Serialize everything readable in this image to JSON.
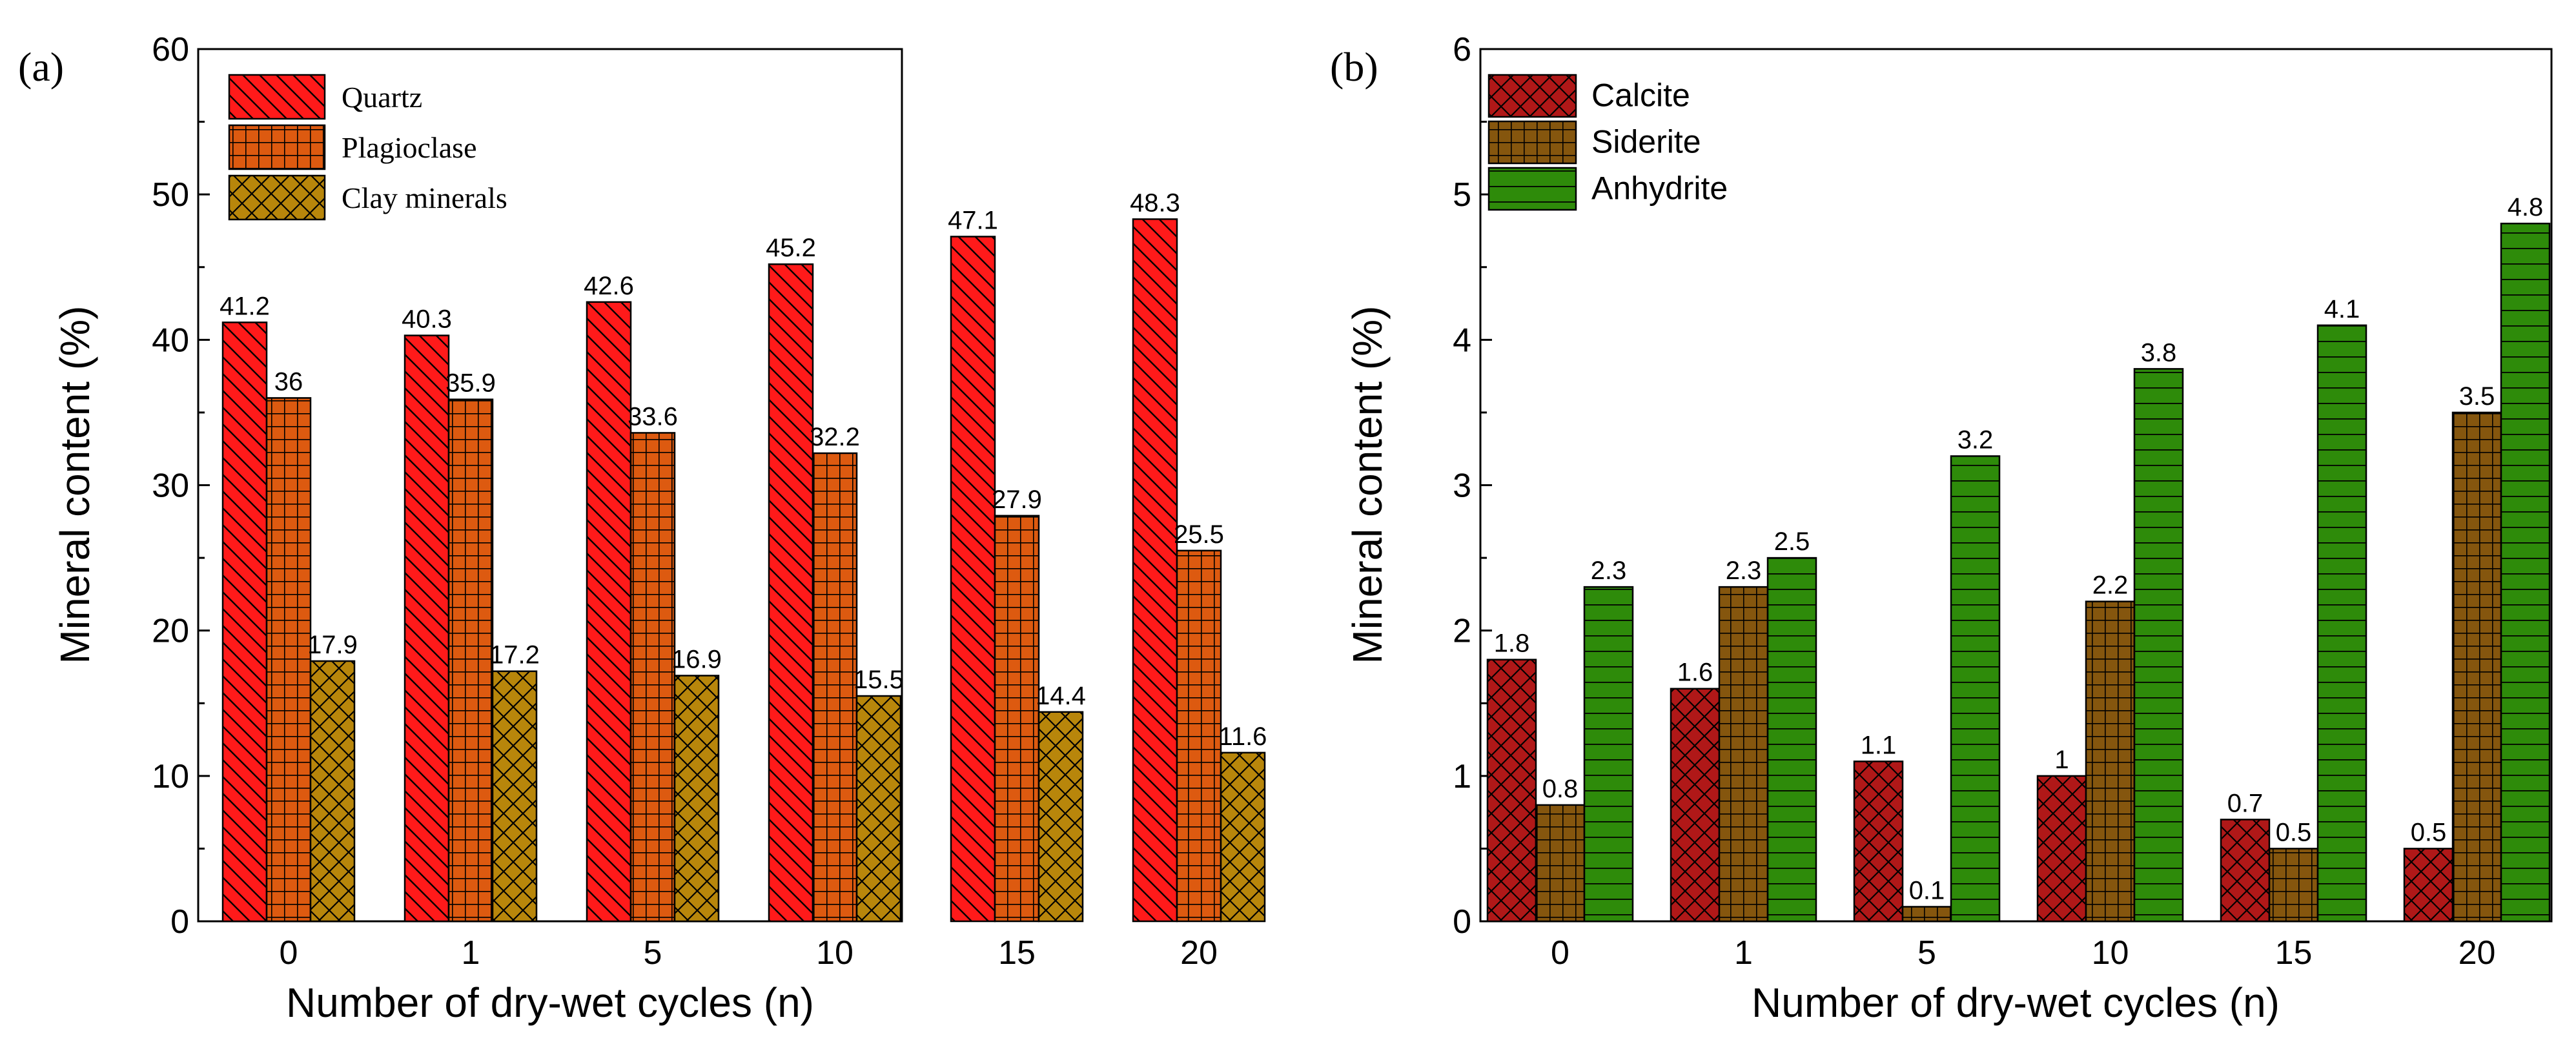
{
  "chart_data": [
    {
      "panel": "(a)",
      "type": "bar",
      "xlabel": "Number of dry-wet cycles (n)",
      "ylabel": "Mineral content (%)",
      "ylim": [
        0,
        60
      ],
      "yticks": [
        0,
        10,
        20,
        30,
        40,
        50,
        60
      ],
      "categories": [
        "0",
        "1",
        "5",
        "10",
        "15",
        "20"
      ],
      "series": [
        {
          "name": "Quartz",
          "color": "#ff1a1a",
          "pattern": "hatch-back",
          "values": [
            41.2,
            40.3,
            42.6,
            45.2,
            47.1,
            48.3
          ]
        },
        {
          "name": "Plagioclase",
          "color": "#dd5a10",
          "pattern": "grid",
          "values": [
            36,
            35.9,
            33.6,
            32.2,
            27.9,
            25.5
          ]
        },
        {
          "name": "Clay minerals",
          "color": "#b8860b",
          "pattern": "crosshatch",
          "values": [
            17.9,
            17.2,
            16.9,
            15.5,
            14.4,
            11.6
          ]
        }
      ],
      "legend_position": "top-left"
    },
    {
      "panel": "(b)",
      "type": "bar",
      "xlabel": "Number of dry-wet cycles (n)",
      "ylabel": "Mineral content (%)",
      "ylim": [
        0,
        6
      ],
      "yticks": [
        0,
        1,
        2,
        3,
        4,
        5,
        6
      ],
      "categories": [
        "0",
        "1",
        "5",
        "10",
        "15",
        "20"
      ],
      "series": [
        {
          "name": "Calcite",
          "color": "#b01818",
          "pattern": "crosshatch",
          "values": [
            1.8,
            1.6,
            1.1,
            1,
            0.7,
            0.5
          ]
        },
        {
          "name": "Siderite",
          "color": "#85560e",
          "pattern": "grid",
          "values": [
            0.8,
            2.3,
            0.1,
            2.2,
            0.5,
            3.5
          ]
        },
        {
          "name": "Anhydrite",
          "color": "#2e8b0a",
          "pattern": "horizontal",
          "values": [
            2.3,
            2.5,
            3.2,
            3.8,
            4.1,
            4.8
          ]
        }
      ],
      "legend_position": "top-left"
    }
  ]
}
